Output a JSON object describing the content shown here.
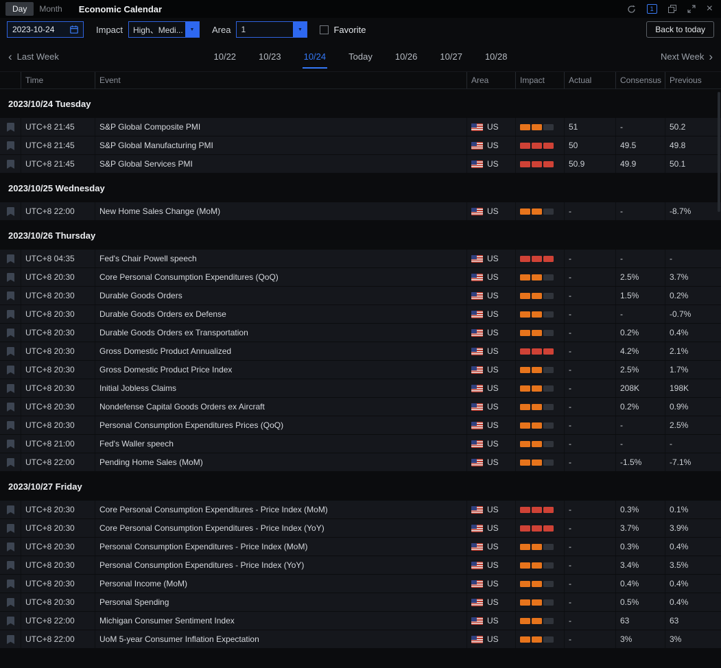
{
  "titlebar": {
    "day": "Day",
    "month": "Month",
    "title": "Economic Calendar"
  },
  "icons": {
    "close": "×",
    "chevron_left": "‹",
    "chevron_right": "›",
    "dropdown_arrow": "▼",
    "panel_badge": "1"
  },
  "filters": {
    "date": "2023-10-24",
    "impact_label": "Impact",
    "impact_value": "High、Medi...",
    "area_label": "Area",
    "area_value": "1",
    "favorite_label": "Favorite",
    "back_to_today": "Back to today"
  },
  "weeknav": {
    "last_week": "Last Week",
    "next_week": "Next Week",
    "tabs": [
      {
        "label": "10/22",
        "active": false
      },
      {
        "label": "10/23",
        "active": false
      },
      {
        "label": "10/24",
        "active": true
      },
      {
        "label": "Today",
        "active": false
      },
      {
        "label": "10/26",
        "active": false
      },
      {
        "label": "10/27",
        "active": false
      },
      {
        "label": "10/28",
        "active": false
      }
    ]
  },
  "colors": {
    "accent": "#2f63e0",
    "tab_active": "#3478f6",
    "impact_high": "#cf4236",
    "impact_medium": "#e7741c",
    "impact_empty": "#30343b"
  },
  "table": {
    "columns": [
      "Time",
      "Event",
      "Area",
      "Impact",
      "Actual",
      "Consensus",
      "Previous"
    ],
    "groups": [
      {
        "date": "2023/10/24 Tuesday",
        "rows": [
          {
            "time": "UTC+8 21:45",
            "event": "S&P Global Composite PMI",
            "area": "US",
            "impact": "medium",
            "actual": "51",
            "consensus": "-",
            "previous": "50.2"
          },
          {
            "time": "UTC+8 21:45",
            "event": "S&P Global Manufacturing PMI",
            "area": "US",
            "impact": "high",
            "actual": "50",
            "consensus": "49.5",
            "previous": "49.8"
          },
          {
            "time": "UTC+8 21:45",
            "event": "S&P Global Services PMI",
            "area": "US",
            "impact": "high",
            "actual": "50.9",
            "consensus": "49.9",
            "previous": "50.1"
          }
        ]
      },
      {
        "date": "2023/10/25 Wednesday",
        "rows": [
          {
            "time": "UTC+8 22:00",
            "event": "New Home Sales Change (MoM)",
            "area": "US",
            "impact": "medium",
            "actual": "-",
            "consensus": "-",
            "previous": "-8.7%"
          }
        ]
      },
      {
        "date": "2023/10/26 Thursday",
        "rows": [
          {
            "time": "UTC+8 04:35",
            "event": "Fed's Chair Powell speech",
            "area": "US",
            "impact": "high",
            "actual": "-",
            "consensus": "-",
            "previous": "-"
          },
          {
            "time": "UTC+8 20:30",
            "event": "Core Personal Consumption Expenditures (QoQ)",
            "area": "US",
            "impact": "medium",
            "actual": "-",
            "consensus": "2.5%",
            "previous": "3.7%"
          },
          {
            "time": "UTC+8 20:30",
            "event": "Durable Goods Orders",
            "area": "US",
            "impact": "medium",
            "actual": "-",
            "consensus": "1.5%",
            "previous": "0.2%"
          },
          {
            "time": "UTC+8 20:30",
            "event": "Durable Goods Orders ex Defense",
            "area": "US",
            "impact": "medium",
            "actual": "-",
            "consensus": "-",
            "previous": "-0.7%"
          },
          {
            "time": "UTC+8 20:30",
            "event": "Durable Goods Orders ex Transportation",
            "area": "US",
            "impact": "medium",
            "actual": "-",
            "consensus": "0.2%",
            "previous": "0.4%"
          },
          {
            "time": "UTC+8 20:30",
            "event": "Gross Domestic Product Annualized",
            "area": "US",
            "impact": "high",
            "actual": "-",
            "consensus": "4.2%",
            "previous": "2.1%"
          },
          {
            "time": "UTC+8 20:30",
            "event": "Gross Domestic Product Price Index",
            "area": "US",
            "impact": "medium",
            "actual": "-",
            "consensus": "2.5%",
            "previous": "1.7%"
          },
          {
            "time": "UTC+8 20:30",
            "event": "Initial Jobless Claims",
            "area": "US",
            "impact": "medium",
            "actual": "-",
            "consensus": "208K",
            "previous": "198K"
          },
          {
            "time": "UTC+8 20:30",
            "event": "Nondefense Capital Goods Orders ex Aircraft",
            "area": "US",
            "impact": "medium",
            "actual": "-",
            "consensus": "0.2%",
            "previous": "0.9%"
          },
          {
            "time": "UTC+8 20:30",
            "event": "Personal Consumption Expenditures Prices (QoQ)",
            "area": "US",
            "impact": "medium",
            "actual": "-",
            "consensus": "-",
            "previous": "2.5%"
          },
          {
            "time": "UTC+8 21:00",
            "event": "Fed's Waller speech",
            "area": "US",
            "impact": "medium",
            "actual": "-",
            "consensus": "-",
            "previous": "-"
          },
          {
            "time": "UTC+8 22:00",
            "event": "Pending Home Sales (MoM)",
            "area": "US",
            "impact": "medium",
            "actual": "-",
            "consensus": "-1.5%",
            "previous": "-7.1%"
          }
        ]
      },
      {
        "date": "2023/10/27 Friday",
        "rows": [
          {
            "time": "UTC+8 20:30",
            "event": "Core Personal Consumption Expenditures - Price Index (MoM)",
            "area": "US",
            "impact": "high",
            "actual": "-",
            "consensus": "0.3%",
            "previous": "0.1%"
          },
          {
            "time": "UTC+8 20:30",
            "event": "Core Personal Consumption Expenditures - Price Index (YoY)",
            "area": "US",
            "impact": "high",
            "actual": "-",
            "consensus": "3.7%",
            "previous": "3.9%"
          },
          {
            "time": "UTC+8 20:30",
            "event": "Personal Consumption Expenditures - Price Index (MoM)",
            "area": "US",
            "impact": "medium",
            "actual": "-",
            "consensus": "0.3%",
            "previous": "0.4%"
          },
          {
            "time": "UTC+8 20:30",
            "event": "Personal Consumption Expenditures - Price Index (YoY)",
            "area": "US",
            "impact": "medium",
            "actual": "-",
            "consensus": "3.4%",
            "previous": "3.5%"
          },
          {
            "time": "UTC+8 20:30",
            "event": "Personal Income (MoM)",
            "area": "US",
            "impact": "medium",
            "actual": "-",
            "consensus": "0.4%",
            "previous": "0.4%"
          },
          {
            "time": "UTC+8 20:30",
            "event": "Personal Spending",
            "area": "US",
            "impact": "medium",
            "actual": "-",
            "consensus": "0.5%",
            "previous": "0.4%"
          },
          {
            "time": "UTC+8 22:00",
            "event": "Michigan Consumer Sentiment Index",
            "area": "US",
            "impact": "medium",
            "actual": "-",
            "consensus": "63",
            "previous": "63"
          },
          {
            "time": "UTC+8 22:00",
            "event": "UoM 5-year Consumer Inflation Expectation",
            "area": "US",
            "impact": "medium",
            "actual": "-",
            "consensus": "3%",
            "previous": "3%"
          }
        ]
      }
    ]
  }
}
